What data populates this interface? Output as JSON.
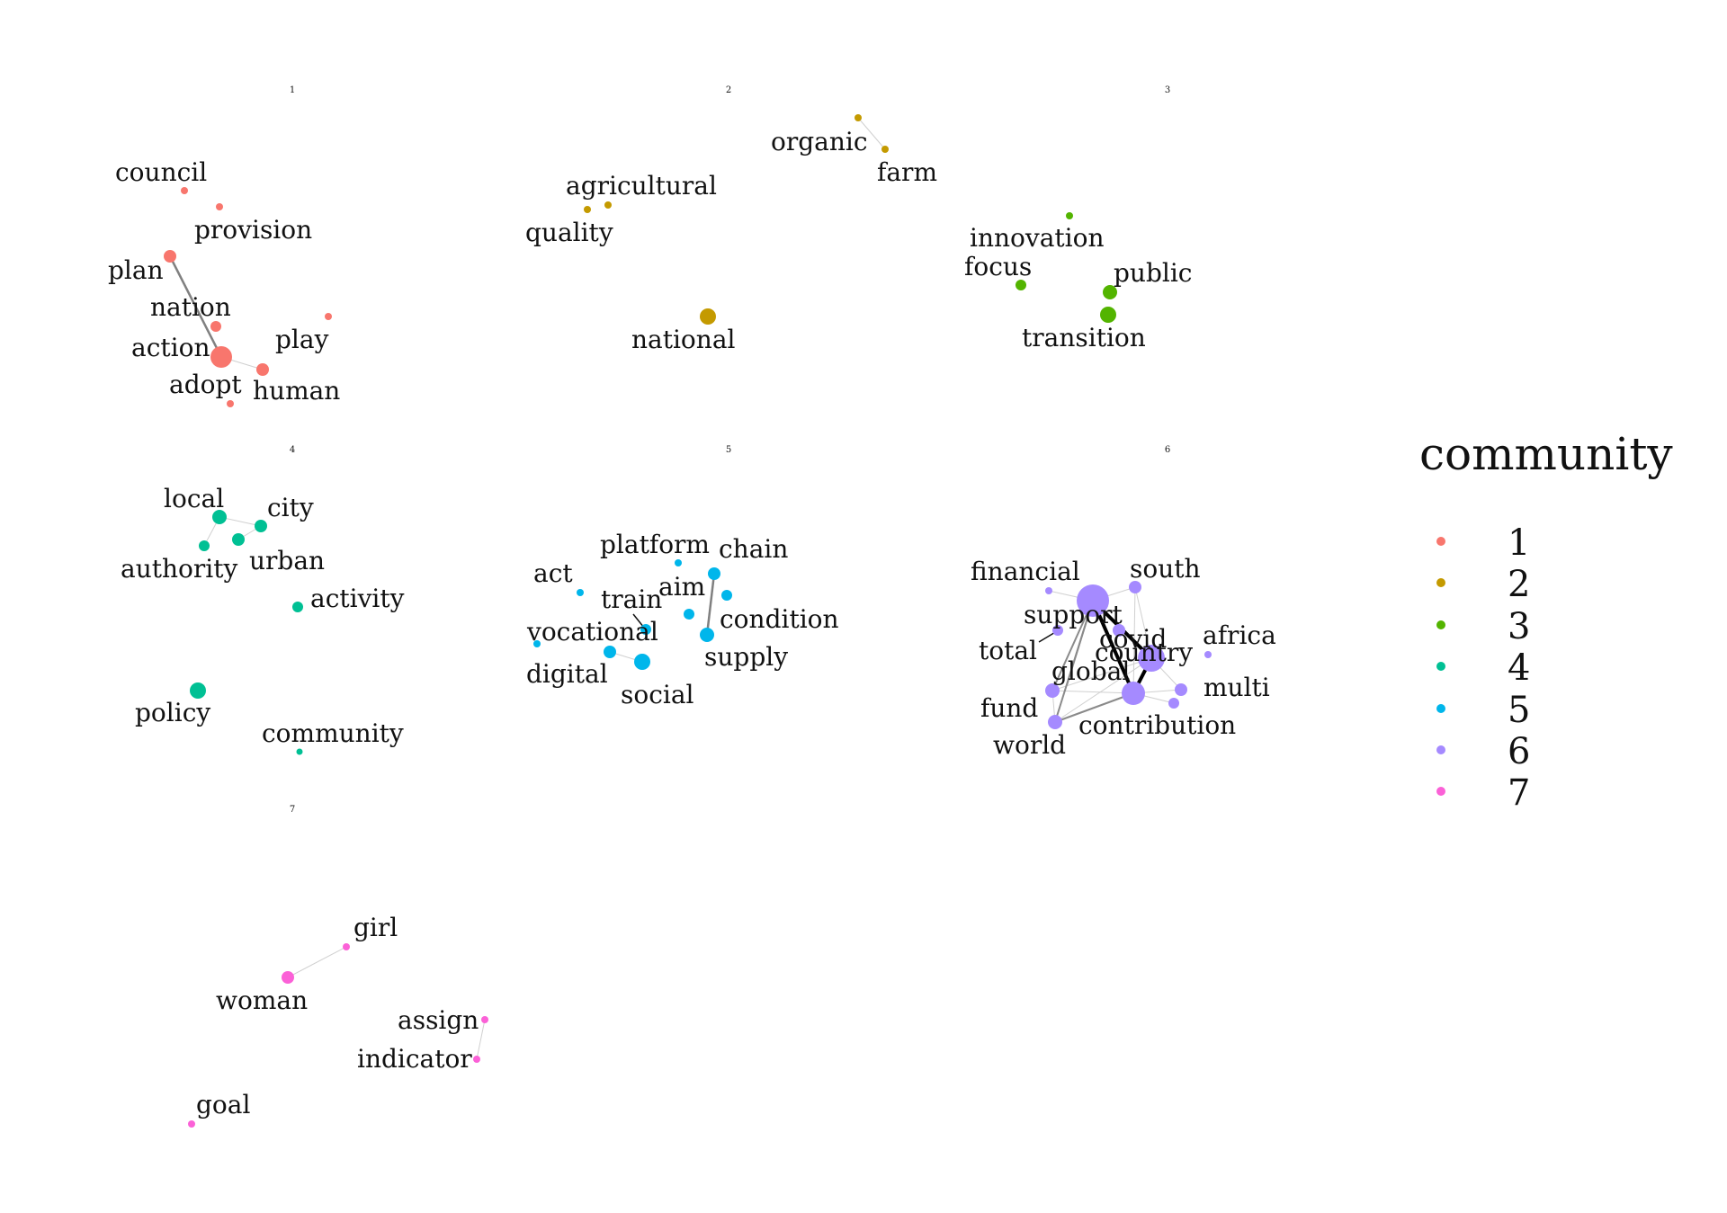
{
  "legend": {
    "title": "community",
    "items": [
      {
        "label": "1",
        "color": "#F8766D"
      },
      {
        "label": "2",
        "color": "#C49A00"
      },
      {
        "label": "3",
        "color": "#53B400"
      },
      {
        "label": "4",
        "color": "#00C094"
      },
      {
        "label": "5",
        "color": "#00B6EB"
      },
      {
        "label": "6",
        "color": "#A58AFF"
      },
      {
        "label": "7",
        "color": "#FB61D7"
      }
    ]
  },
  "panels": [
    {
      "title": "1",
      "community": 1,
      "color": "#F8766D",
      "nodes": [
        {
          "id": "council",
          "label": "council",
          "size": "small"
        },
        {
          "id": "provision",
          "label": "provision",
          "size": "small"
        },
        {
          "id": "plan",
          "label": "plan",
          "size": "medium"
        },
        {
          "id": "nation",
          "label": "nation",
          "size": "medium"
        },
        {
          "id": "action",
          "label": "action",
          "size": "large"
        },
        {
          "id": "play",
          "label": "play",
          "size": "small"
        },
        {
          "id": "human",
          "label": "human",
          "size": "medium"
        },
        {
          "id": "adopt",
          "label": "adopt",
          "size": "small"
        }
      ],
      "edges": [
        {
          "source": "plan",
          "target": "action",
          "weight": "strong"
        },
        {
          "source": "action",
          "target": "human",
          "weight": "weak"
        }
      ]
    },
    {
      "title": "2",
      "community": 2,
      "color": "#C49A00",
      "nodes": [
        {
          "id": "organic",
          "label": "organic",
          "size": "small"
        },
        {
          "id": "farm",
          "label": "farm",
          "size": "small"
        },
        {
          "id": "agricultural",
          "label": "agricultural",
          "size": "small"
        },
        {
          "id": "quality",
          "label": "quality",
          "size": "small"
        },
        {
          "id": "national",
          "label": "national",
          "size": "large"
        }
      ],
      "edges": [
        {
          "source": "organic",
          "target": "farm",
          "weight": "weak"
        }
      ]
    },
    {
      "title": "3",
      "community": 3,
      "color": "#53B400",
      "nodes": [
        {
          "id": "innovation",
          "label": "innovation",
          "size": "small"
        },
        {
          "id": "focus",
          "label": "focus",
          "size": "medium"
        },
        {
          "id": "public",
          "label": "public",
          "size": "medium"
        },
        {
          "id": "transition",
          "label": "transition",
          "size": "large"
        }
      ],
      "edges": []
    },
    {
      "title": "4",
      "community": 4,
      "color": "#00C094",
      "nodes": [
        {
          "id": "local",
          "label": "local",
          "size": "medium"
        },
        {
          "id": "city",
          "label": "city",
          "size": "medium"
        },
        {
          "id": "authority",
          "label": "authority",
          "size": "small"
        },
        {
          "id": "urban",
          "label": "urban",
          "size": "medium"
        },
        {
          "id": "activity",
          "label": "activity",
          "size": "medium"
        },
        {
          "id": "policy",
          "label": "policy",
          "size": "large"
        },
        {
          "id": "community",
          "label": "community",
          "size": "small"
        }
      ],
      "edges": [
        {
          "source": "local",
          "target": "city",
          "weight": "weak"
        },
        {
          "source": "local",
          "target": "authority",
          "weight": "weak"
        },
        {
          "source": "city",
          "target": "urban",
          "weight": "weak"
        }
      ]
    },
    {
      "title": "5",
      "community": 5,
      "color": "#00B6EB",
      "nodes": [
        {
          "id": "platform",
          "label": "platform",
          "size": "small"
        },
        {
          "id": "chain",
          "label": "chain",
          "size": "medium"
        },
        {
          "id": "act",
          "label": "act",
          "size": "small"
        },
        {
          "id": "aim",
          "label": "aim",
          "size": "small"
        },
        {
          "id": "train",
          "label": "train",
          "size": "medium"
        },
        {
          "id": "condition",
          "label": "condition",
          "size": "small"
        },
        {
          "id": "vocational",
          "label": "vocational",
          "size": "small"
        },
        {
          "id": "supply",
          "label": "supply",
          "size": "medium"
        },
        {
          "id": "digital",
          "label": "digital",
          "size": "medium"
        },
        {
          "id": "social",
          "label": "social",
          "size": "large"
        }
      ],
      "edges": [
        {
          "source": "chain",
          "target": "supply",
          "weight": "strong"
        },
        {
          "source": "digital",
          "target": "social",
          "weight": "weak"
        }
      ]
    },
    {
      "title": "6",
      "community": 6,
      "color": "#A58AFF",
      "nodes": [
        {
          "id": "financial",
          "label": "financial",
          "size": "small"
        },
        {
          "id": "south",
          "label": "south",
          "size": "medium"
        },
        {
          "id": "support",
          "label": "support",
          "size": "xlarge"
        },
        {
          "id": "total",
          "label": "total",
          "size": "small"
        },
        {
          "id": "covid",
          "label": "covid",
          "size": "small"
        },
        {
          "id": "country",
          "label": "country",
          "size": "xlarge"
        },
        {
          "id": "africa",
          "label": "africa",
          "size": "small"
        },
        {
          "id": "global",
          "label": "global",
          "size": "small"
        },
        {
          "id": "multi",
          "label": "multi",
          "size": "medium"
        },
        {
          "id": "fund",
          "label": "fund",
          "size": "medium"
        },
        {
          "id": "contribution",
          "label": "contribution",
          "size": "large"
        },
        {
          "id": "world",
          "label": "world",
          "size": "medium"
        },
        {
          "id": "multi2",
          "label": "",
          "size": "medium"
        }
      ],
      "edges": [
        {
          "source": "support",
          "target": "country",
          "weight": "heavy"
        },
        {
          "source": "support",
          "target": "contribution",
          "weight": "heavy"
        },
        {
          "source": "country",
          "target": "contribution",
          "weight": "heavy"
        },
        {
          "source": "support",
          "target": "world",
          "weight": "strong"
        },
        {
          "source": "support",
          "target": "fund",
          "weight": "strong"
        },
        {
          "source": "world",
          "target": "contribution",
          "weight": "strong"
        },
        {
          "source": "fund",
          "target": "contribution",
          "weight": "weak"
        },
        {
          "source": "fund",
          "target": "country",
          "weight": "weak"
        },
        {
          "source": "world",
          "target": "country",
          "weight": "weak"
        },
        {
          "source": "support",
          "target": "south",
          "weight": "weak"
        },
        {
          "source": "south",
          "target": "country",
          "weight": "weak"
        },
        {
          "source": "south",
          "target": "contribution",
          "weight": "weak"
        },
        {
          "source": "covid",
          "target": "country",
          "weight": "weak"
        },
        {
          "source": "contribution",
          "target": "multi",
          "weight": "weak"
        },
        {
          "source": "contribution",
          "target": "multi2",
          "weight": "weak"
        },
        {
          "source": "country",
          "target": "multi",
          "weight": "weak"
        },
        {
          "source": "support",
          "target": "total",
          "weight": "weak"
        },
        {
          "source": "financial",
          "target": "support",
          "weight": "weak"
        }
      ]
    },
    {
      "title": "7",
      "community": 7,
      "color": "#FB61D7",
      "nodes": [
        {
          "id": "girl",
          "label": "girl",
          "size": "small"
        },
        {
          "id": "woman",
          "label": "woman",
          "size": "medium"
        },
        {
          "id": "assign",
          "label": "assign",
          "size": "small"
        },
        {
          "id": "indicator",
          "label": "indicator",
          "size": "small"
        },
        {
          "id": "goal",
          "label": "goal",
          "size": "small"
        }
      ],
      "edges": [
        {
          "source": "woman",
          "target": "girl",
          "weight": "weak"
        },
        {
          "source": "assign",
          "target": "indicator",
          "weight": "weak"
        }
      ]
    }
  ]
}
